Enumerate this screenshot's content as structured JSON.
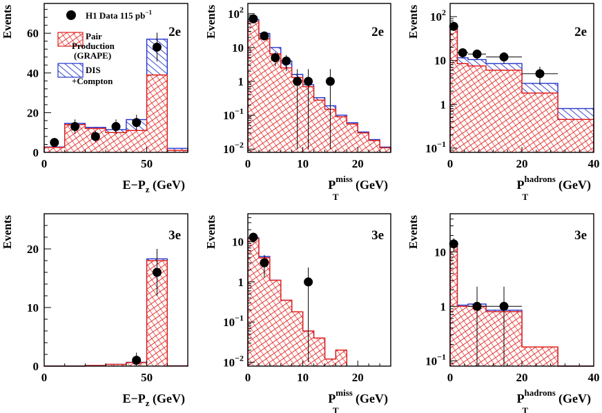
{
  "legend": {
    "data_label": "H1 Data 115 pb",
    "data_label_sup": "−1",
    "pair_label_lines": [
      "Pair",
      "Production",
      "(GRAPE)"
    ],
    "dis_label_lines": [
      "DIS",
      "+Compton"
    ]
  },
  "chart_data": [
    {
      "type": "bar",
      "channel": "2e",
      "ylabel": "Events",
      "xlabel": {
        "main": "E−P",
        "sub": "z",
        "unit": "(GeV)"
      },
      "xlim": [
        0,
        70
      ],
      "ylim": [
        0,
        75
      ],
      "yscale": "linear",
      "xticks": [
        0,
        50
      ],
      "xtick_labels": [
        "0",
        "50"
      ],
      "yticks": [
        0,
        20,
        40,
        60
      ],
      "ytick_labels": [
        "0",
        "20",
        "40",
        "60"
      ],
      "bin_edges": [
        0,
        10,
        20,
        30,
        40,
        50,
        60,
        70
      ],
      "pair_production": [
        2.5,
        14,
        12,
        10,
        11,
        39,
        1
      ],
      "dis_compton": [
        0.2,
        0.6,
        0.6,
        1.5,
        5.5,
        18,
        1
      ],
      "data": [
        {
          "x": 5,
          "y": 5,
          "err": [
            2.2,
            2.2
          ]
        },
        {
          "x": 15,
          "y": 13,
          "err": [
            3.6,
            3.6
          ]
        },
        {
          "x": 25,
          "y": 8,
          "err": [
            2.8,
            2.8
          ]
        },
        {
          "x": 35,
          "y": 13,
          "err": [
            3.6,
            3.6
          ]
        },
        {
          "x": 45,
          "y": 15,
          "err": [
            3.9,
            3.9
          ]
        },
        {
          "x": 55,
          "y": 53,
          "err": [
            7.3,
            7.3
          ]
        }
      ]
    },
    {
      "type": "bar",
      "channel": "2e",
      "ylabel": "Events",
      "xlabel": {
        "main": "P",
        "sup": "miss",
        "sub": "T",
        "unit": "(GeV)"
      },
      "xlim": [
        0,
        26
      ],
      "ylim": [
        0.008,
        200
      ],
      "yscale": "log",
      "xticks": [
        0,
        10,
        20
      ],
      "xtick_labels": [
        "0",
        "10",
        "20"
      ],
      "yticks": [
        0.01,
        0.1,
        1,
        10,
        100
      ],
      "ytick_labels": [
        [
          "10",
          "−2"
        ],
        [
          "10",
          "−1"
        ],
        [
          "1",
          ""
        ],
        [
          "10",
          ""
        ],
        [
          "10",
          "2"
        ]
      ],
      "bin_edges": [
        0,
        2,
        4,
        6,
        8,
        10,
        12,
        14,
        16,
        18,
        20,
        22,
        24,
        26
      ],
      "pair_production": [
        60,
        18,
        6.5,
        2.5,
        1.3,
        0.7,
        0.28,
        0.15,
        0.09,
        0.055,
        0.03,
        0.018,
        0.011
      ],
      "dis_compton": [
        7,
        8,
        3.5,
        1.5,
        0.3,
        0.1,
        0.05,
        0.04,
        0.01,
        0.005,
        0.002,
        0.001,
        0.0005
      ],
      "data": [
        {
          "x": 1,
          "y": 70,
          "err": [
            8.4,
            8.4
          ]
        },
        {
          "x": 3,
          "y": 22,
          "err": [
            4.7,
            4.7
          ]
        },
        {
          "x": 5,
          "y": 5,
          "err": [
            2.2,
            2.2
          ]
        },
        {
          "x": 7,
          "y": 4,
          "err": [
            2,
            2
          ]
        },
        {
          "x": 9,
          "y": 1,
          "err": [
            0.99,
            1.3
          ]
        },
        {
          "x": 11,
          "y": 1,
          "err": [
            0.99,
            1.3
          ]
        },
        {
          "x": 15,
          "y": 1,
          "err": [
            0.99,
            1.3
          ]
        }
      ]
    },
    {
      "type": "bar",
      "channel": "2e",
      "ylabel": "Events",
      "xlabel": {
        "main": "P",
        "sup": "hadrons",
        "sub": "T",
        "unit": "(GeV)"
      },
      "xlim": [
        0,
        40
      ],
      "ylim": [
        0.08,
        200
      ],
      "yscale": "log",
      "xticks": [
        0,
        20,
        40
      ],
      "xtick_labels": [
        "0",
        "20",
        "40"
      ],
      "yticks": [
        0.1,
        1,
        10,
        100
      ],
      "ytick_labels": [
        [
          "10",
          "−1"
        ],
        [
          "1",
          ""
        ],
        [
          "10",
          ""
        ],
        [
          "10",
          "2"
        ]
      ],
      "bin_edges": [
        0,
        2,
        5,
        10,
        20,
        30,
        40
      ],
      "pair_production": [
        60,
        8.5,
        7.5,
        6,
        1.8,
        0.45
      ],
      "dis_compton": [
        5,
        3,
        3,
        2.5,
        1.2,
        0.35
      ],
      "data": [
        {
          "x": 1,
          "y": 60,
          "err": [
            7.7,
            7.7
          ]
        },
        {
          "x": 3.5,
          "y": 15,
          "err": [
            3.9,
            3.9
          ],
          "xerr": 1.5
        },
        {
          "x": 7.5,
          "y": 14,
          "err": [
            3.7,
            3.7
          ],
          "xerr": 2.5
        },
        {
          "x": 15,
          "y": 12,
          "err": [
            3.5,
            3.5
          ],
          "xerr": 5
        },
        {
          "x": 25,
          "y": 5,
          "err": [
            2.2,
            2.2
          ],
          "xerr": 5
        }
      ]
    },
    {
      "type": "bar",
      "channel": "3e",
      "ylabel": "Events",
      "xlabel": {
        "main": "E−P",
        "sub": "z",
        "unit": "(GeV)"
      },
      "xlim": [
        0,
        70
      ],
      "ylim": [
        0,
        26
      ],
      "yscale": "linear",
      "xticks": [
        0,
        50
      ],
      "xtick_labels": [
        "0",
        "50"
      ],
      "yticks": [
        0,
        10,
        20
      ],
      "ytick_labels": [
        "0",
        "10",
        "20"
      ],
      "bin_edges": [
        0,
        10,
        20,
        30,
        40,
        50,
        60,
        70
      ],
      "pair_production": [
        0,
        0,
        0.1,
        0.3,
        0.6,
        18,
        0.05
      ],
      "dis_compton": [
        0,
        0,
        0,
        0,
        0.05,
        0.3,
        0
      ],
      "data": [
        {
          "x": 45,
          "y": 1,
          "err": [
            0.99,
            1.3
          ]
        },
        {
          "x": 55,
          "y": 16,
          "err": [
            4,
            4
          ]
        }
      ]
    },
    {
      "type": "bar",
      "channel": "3e",
      "ylabel": "Events",
      "xlabel": {
        "main": "P",
        "sup": "miss",
        "sub": "T",
        "unit": "(GeV)"
      },
      "xlim": [
        0,
        26
      ],
      "ylim": [
        0.008,
        50
      ],
      "yscale": "log",
      "xticks": [
        0,
        10,
        20
      ],
      "xtick_labels": [
        "0",
        "10",
        "20"
      ],
      "yticks": [
        0.01,
        0.1,
        1,
        10
      ],
      "ytick_labels": [
        [
          "10",
          "−2"
        ],
        [
          "10",
          "−1"
        ],
        [
          "1",
          ""
        ],
        [
          "10",
          ""
        ]
      ],
      "bin_edges": [
        0,
        2,
        4,
        6,
        8,
        10,
        12,
        14,
        16,
        18
      ],
      "pair_production": [
        12,
        4,
        1.1,
        0.35,
        0.18,
        0.06,
        0.04,
        0.012,
        0.02
      ],
      "dis_compton": [
        0.5,
        0.3,
        0,
        0,
        0,
        0,
        0,
        0,
        0
      ],
      "data": [
        {
          "x": 1,
          "y": 13,
          "err": [
            3.6,
            3.6
          ]
        },
        {
          "x": 3,
          "y": 3,
          "err": [
            1.7,
            1.7
          ]
        },
        {
          "x": 11,
          "y": 1,
          "err": [
            0.99,
            1.3
          ]
        }
      ]
    },
    {
      "type": "bar",
      "channel": "3e",
      "ylabel": "Events",
      "xlabel": {
        "main": "P",
        "sup": "hadrons",
        "sub": "T",
        "unit": "(GeV)"
      },
      "xlim": [
        0,
        40
      ],
      "ylim": [
        0.08,
        50
      ],
      "yscale": "log",
      "xticks": [
        0,
        20,
        40
      ],
      "xtick_labels": [
        "0",
        "20",
        "40"
      ],
      "yticks": [
        0.1,
        1,
        10
      ],
      "ytick_labels": [
        [
          "10",
          "−1"
        ],
        [
          "1",
          ""
        ],
        [
          "10",
          ""
        ]
      ],
      "bin_edges": [
        0,
        2,
        5,
        10,
        20,
        30,
        40
      ],
      "pair_production": [
        14,
        1,
        1,
        0.8,
        0.18,
        0
      ],
      "dis_compton": [
        0.5,
        0.05,
        0.1,
        0.05,
        0,
        0
      ],
      "data": [
        {
          "x": 1,
          "y": 14,
          "err": [
            3.7,
            3.7
          ]
        },
        {
          "x": 7.5,
          "y": 1,
          "err": [
            0.99,
            1.3
          ],
          "xerr": 2.5
        },
        {
          "x": 15,
          "y": 1,
          "err": [
            0.99,
            1.3
          ],
          "xerr": 5
        }
      ]
    }
  ]
}
